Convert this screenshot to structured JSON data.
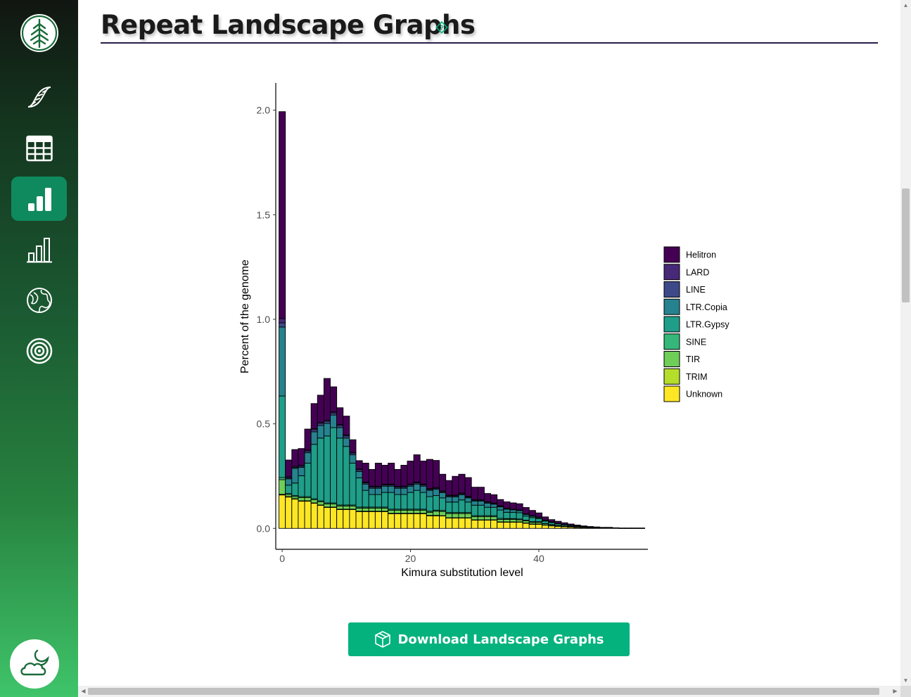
{
  "page": {
    "title": "Repeat Landscape Graphs"
  },
  "sidebar": {
    "items": [
      {
        "icon": "dna-icon",
        "active": false
      },
      {
        "icon": "table-icon",
        "active": false
      },
      {
        "icon": "bar-chart-icon",
        "active": true
      },
      {
        "icon": "bar-chart-outline-icon",
        "active": false
      },
      {
        "icon": "globe-icon",
        "active": false
      },
      {
        "icon": "target-icon",
        "active": false
      }
    ],
    "theme_toggle_icon": "cloud-moon-icon"
  },
  "download": {
    "label": "Download Landscape Graphs",
    "icon": "box-icon"
  },
  "colors": {
    "accent": "#03b27d",
    "sidebar_active": "#0f8a5f",
    "title_rule": "#2a1d4a"
  },
  "chart_data": {
    "type": "bar",
    "stacked": true,
    "xlabel": "Kimura substitution level",
    "ylabel": "Percent of the genome",
    "x_ticks": [
      "0",
      "20",
      "40"
    ],
    "y_ticks": [
      "0.0",
      "0.5",
      "1.0",
      "1.5",
      "2.0"
    ],
    "xlim": [
      -1,
      57
    ],
    "ylim": [
      -0.1,
      2.13
    ],
    "grid": false,
    "legend_position": "right",
    "x": [
      0,
      1,
      2,
      3,
      4,
      5,
      6,
      7,
      8,
      9,
      10,
      11,
      12,
      13,
      14,
      15,
      16,
      17,
      18,
      19,
      20,
      21,
      22,
      23,
      24,
      25,
      26,
      27,
      28,
      29,
      30,
      31,
      32,
      33,
      34,
      35,
      36,
      37,
      38,
      39,
      40,
      41,
      42,
      43,
      44,
      45,
      46,
      47,
      48,
      49,
      50,
      51,
      52,
      53,
      54,
      55,
      56
    ],
    "series": [
      {
        "name": "Unknown",
        "color": "#fde725",
        "values": [
          0.16,
          0.15,
          0.14,
          0.13,
          0.13,
          0.12,
          0.11,
          0.1,
          0.1,
          0.09,
          0.09,
          0.09,
          0.08,
          0.08,
          0.08,
          0.08,
          0.08,
          0.07,
          0.07,
          0.07,
          0.07,
          0.07,
          0.07,
          0.06,
          0.06,
          0.06,
          0.05,
          0.05,
          0.05,
          0.05,
          0.04,
          0.04,
          0.04,
          0.04,
          0.03,
          0.03,
          0.03,
          0.03,
          0.025,
          0.02,
          0.02,
          0.015,
          0.012,
          0.01,
          0.008,
          0.006,
          0.005,
          0.004,
          0.003,
          0.003,
          0.002,
          0.002,
          0.002,
          0.001,
          0.001,
          0.001,
          0.001
        ]
      },
      {
        "name": "TRIM",
        "color": "#b5de2b",
        "values": [
          0.003,
          0.002,
          0.002,
          0.002,
          0.002,
          0.002,
          0.002,
          0.002,
          0.002,
          0.002,
          0.002,
          0.002,
          0.002,
          0.002,
          0.002,
          0.002,
          0.002,
          0.002,
          0.002,
          0.002,
          0.002,
          0.002,
          0.002,
          0.002,
          0.002,
          0.001,
          0.001,
          0.001,
          0.001,
          0.001,
          0.001,
          0.001,
          0.001,
          0.001,
          0.001,
          0.001,
          0.001,
          0.001,
          0.001,
          0.001,
          0.001,
          0.0,
          0.0,
          0.0,
          0.0,
          0.0,
          0.0,
          0.0,
          0.0,
          0.0,
          0.0,
          0.0,
          0.0,
          0.0,
          0.0,
          0.0,
          0.0
        ]
      },
      {
        "name": "TIR",
        "color": "#6ece58",
        "values": [
          0.07,
          0.01,
          0.01,
          0.015,
          0.015,
          0.015,
          0.015,
          0.015,
          0.015,
          0.015,
          0.015,
          0.015,
          0.015,
          0.015,
          0.015,
          0.015,
          0.015,
          0.015,
          0.015,
          0.015,
          0.015,
          0.015,
          0.015,
          0.015,
          0.02,
          0.02,
          0.02,
          0.02,
          0.02,
          0.02,
          0.015,
          0.015,
          0.015,
          0.015,
          0.012,
          0.012,
          0.012,
          0.01,
          0.01,
          0.008,
          0.008,
          0.006,
          0.004,
          0.003,
          0.002,
          0.002,
          0.001,
          0.001,
          0.001,
          0.0,
          0.0,
          0.0,
          0.0,
          0.0,
          0.0,
          0.0,
          0.0
        ]
      },
      {
        "name": "SINE",
        "color": "#35b779",
        "values": [
          0.01,
          0.005,
          0.005,
          0.005,
          0.005,
          0.005,
          0.005,
          0.005,
          0.005,
          0.005,
          0.005,
          0.005,
          0.005,
          0.005,
          0.005,
          0.005,
          0.005,
          0.005,
          0.005,
          0.005,
          0.005,
          0.005,
          0.005,
          0.005,
          0.005,
          0.005,
          0.005,
          0.005,
          0.005,
          0.005,
          0.005,
          0.005,
          0.005,
          0.005,
          0.005,
          0.004,
          0.004,
          0.004,
          0.003,
          0.003,
          0.003,
          0.002,
          0.002,
          0.001,
          0.001,
          0.001,
          0.001,
          0.0,
          0.0,
          0.0,
          0.0,
          0.0,
          0.0,
          0.0,
          0.0,
          0.0,
          0.0
        ]
      },
      {
        "name": "LTR.Gypsy",
        "color": "#1f9e89",
        "values": [
          0.39,
          0.04,
          0.06,
          0.1,
          0.16,
          0.26,
          0.3,
          0.32,
          0.36,
          0.32,
          0.28,
          0.2,
          0.14,
          0.08,
          0.06,
          0.06,
          0.07,
          0.08,
          0.07,
          0.07,
          0.08,
          0.09,
          0.08,
          0.07,
          0.07,
          0.06,
          0.05,
          0.05,
          0.06,
          0.05,
          0.05,
          0.05,
          0.04,
          0.04,
          0.04,
          0.03,
          0.03,
          0.03,
          0.02,
          0.02,
          0.015,
          0.012,
          0.01,
          0.008,
          0.006,
          0.005,
          0.004,
          0.003,
          0.002,
          0.002,
          0.001,
          0.001,
          0.0,
          0.0,
          0.0,
          0.0,
          0.0
        ]
      },
      {
        "name": "LTR.Copia",
        "color": "#26828e",
        "values": [
          0.33,
          0.03,
          0.07,
          0.04,
          0.05,
          0.06,
          0.06,
          0.06,
          0.06,
          0.05,
          0.04,
          0.04,
          0.03,
          0.03,
          0.03,
          0.03,
          0.03,
          0.03,
          0.03,
          0.03,
          0.03,
          0.03,
          0.03,
          0.03,
          0.03,
          0.025,
          0.025,
          0.025,
          0.025,
          0.02,
          0.02,
          0.02,
          0.02,
          0.015,
          0.015,
          0.015,
          0.012,
          0.01,
          0.008,
          0.006,
          0.005,
          0.004,
          0.003,
          0.002,
          0.002,
          0.001,
          0.001,
          0.001,
          0.0,
          0.0,
          0.0,
          0.0,
          0.0,
          0.0,
          0.0,
          0.0,
          0.0
        ]
      },
      {
        "name": "LINE",
        "color": "#3e4989",
        "values": [
          0.02,
          0.005,
          0.005,
          0.005,
          0.008,
          0.01,
          0.01,
          0.01,
          0.01,
          0.01,
          0.01,
          0.008,
          0.008,
          0.006,
          0.006,
          0.006,
          0.006,
          0.006,
          0.006,
          0.006,
          0.006,
          0.006,
          0.006,
          0.005,
          0.005,
          0.005,
          0.005,
          0.005,
          0.005,
          0.004,
          0.004,
          0.004,
          0.004,
          0.003,
          0.003,
          0.003,
          0.002,
          0.002,
          0.002,
          0.002,
          0.001,
          0.001,
          0.001,
          0.001,
          0.0,
          0.0,
          0.0,
          0.0,
          0.0,
          0.0,
          0.0,
          0.0,
          0.0,
          0.0,
          0.0,
          0.0,
          0.0
        ]
      },
      {
        "name": "LARD",
        "color": "#482878",
        "values": [
          0.02,
          0.005,
          0.005,
          0.005,
          0.005,
          0.005,
          0.005,
          0.005,
          0.005,
          0.005,
          0.005,
          0.004,
          0.004,
          0.004,
          0.004,
          0.004,
          0.004,
          0.004,
          0.004,
          0.004,
          0.004,
          0.004,
          0.004,
          0.003,
          0.003,
          0.003,
          0.003,
          0.003,
          0.003,
          0.003,
          0.002,
          0.002,
          0.002,
          0.002,
          0.002,
          0.002,
          0.001,
          0.001,
          0.001,
          0.001,
          0.001,
          0.0,
          0.0,
          0.0,
          0.0,
          0.0,
          0.0,
          0.0,
          0.0,
          0.0,
          0.0,
          0.0,
          0.0,
          0.0,
          0.0,
          0.0,
          0.0
        ]
      },
      {
        "name": "Helitron",
        "color": "#440154",
        "values": [
          0.99,
          0.08,
          0.08,
          0.08,
          0.1,
          0.12,
          0.13,
          0.2,
          0.12,
          0.08,
          0.09,
          0.06,
          0.04,
          0.09,
          0.08,
          0.11,
          0.09,
          0.1,
          0.08,
          0.1,
          0.11,
          0.13,
          0.11,
          0.14,
          0.13,
          0.08,
          0.07,
          0.09,
          0.09,
          0.09,
          0.06,
          0.06,
          0.04,
          0.04,
          0.03,
          0.03,
          0.03,
          0.03,
          0.03,
          0.025,
          0.02,
          0.015,
          0.01,
          0.009,
          0.008,
          0.006,
          0.004,
          0.003,
          0.003,
          0.002,
          0.002,
          0.002,
          0.001,
          0.001,
          0.001,
          0.001,
          0.001
        ]
      }
    ]
  }
}
